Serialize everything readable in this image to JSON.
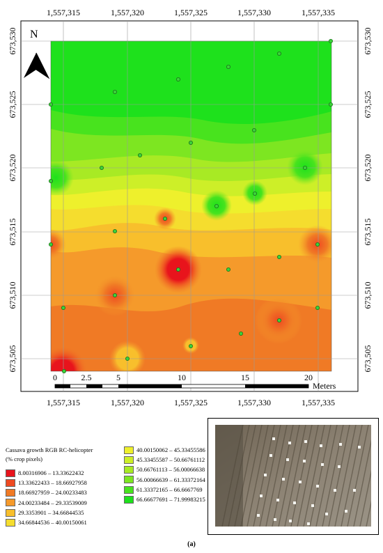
{
  "map": {
    "north_label": "N",
    "x_ticks": [
      "1,557,315",
      "1,557,320",
      "1,557,325",
      "1,557,330",
      "1,557,335"
    ],
    "y_ticks": [
      "673,530",
      "673,525",
      "673,520",
      "673,515",
      "673,510",
      "673,505"
    ],
    "scale_labels": [
      "0",
      "2.5",
      "5",
      "10",
      "15",
      "20"
    ],
    "scale_unit": "Meters"
  },
  "legend": {
    "title_line1": "Cassava growth RGB RC-helicopter",
    "title_line2": "(% crop pixels)",
    "classes": [
      {
        "label": "8.00316906 – 13.33622432",
        "color": "#e8141c"
      },
      {
        "label": "13.33622433 – 18.66927958",
        "color": "#ee4a21"
      },
      {
        "label": "18.66927959 – 24.00233483",
        "color": "#f07a25"
      },
      {
        "label": "24.00233484 – 29.33539009",
        "color": "#f59a2b"
      },
      {
        "label": "29.3353901 – 34.66844535",
        "color": "#f8bf2c"
      },
      {
        "label": "34.66844536 – 40.00150061",
        "color": "#f5dd2e"
      },
      {
        "label": "40.00150062 – 45.33455586",
        "color": "#eef02c"
      },
      {
        "label": "45.33455587 – 50.66761112",
        "color": "#cdef28"
      },
      {
        "label": "50.66761113 – 56.00066638",
        "color": "#a8ea24"
      },
      {
        "label": "56.00066639 – 61.33372164",
        "color": "#7de621"
      },
      {
        "label": "61.33372165 – 66.6667769",
        "color": "#48e31e"
      },
      {
        "label": "66.66677691 – 71.99983215",
        "color": "#1ee11c"
      }
    ]
  },
  "caption": "(a)"
}
